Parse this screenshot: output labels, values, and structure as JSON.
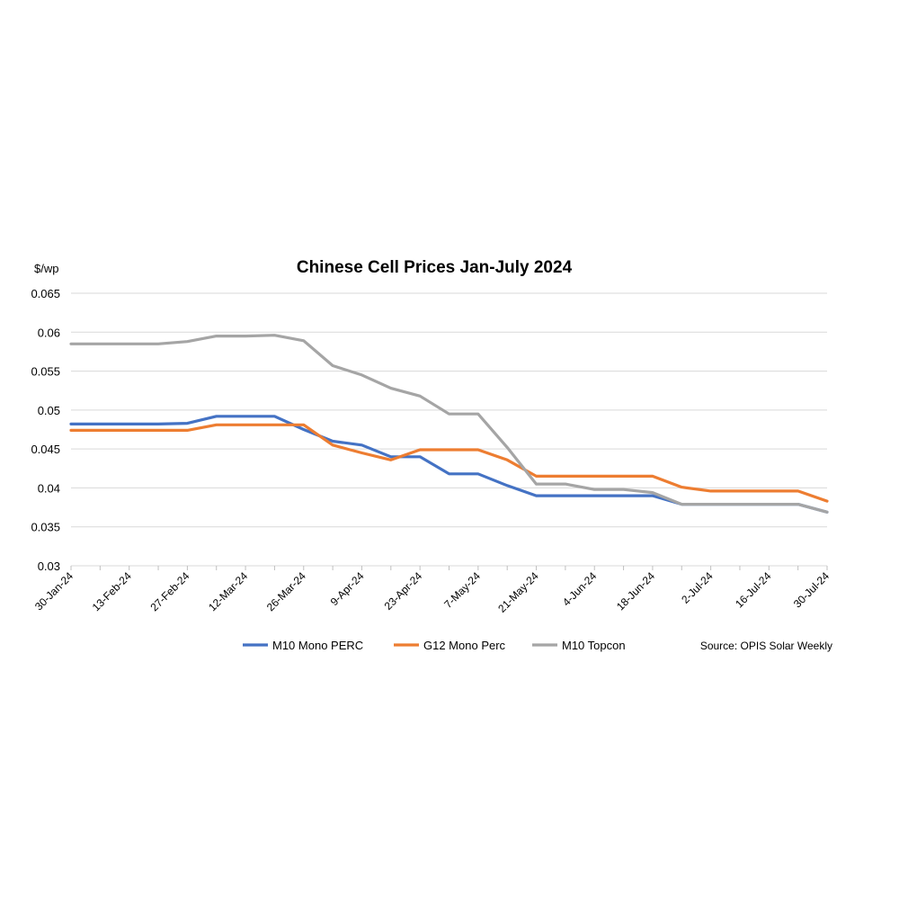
{
  "chart_data": {
    "type": "line",
    "title": "Chinese Cell Prices Jan-July 2024",
    "ylabel": "$/wp",
    "xlabel": "",
    "source": "Source: OPIS Solar Weekly",
    "ylim": [
      0.03,
      0.065
    ],
    "yticks": [
      "0.03",
      "0.035",
      "0.04",
      "0.045",
      "0.05",
      "0.055",
      "0.06",
      "0.065"
    ],
    "grid": true,
    "legend_position": "bottom",
    "categories": [
      "30-Jan-24",
      "6-Feb-24",
      "13-Feb-24",
      "20-Feb-24",
      "27-Feb-24",
      "5-Mar-24",
      "12-Mar-24",
      "19-Mar-24",
      "26-Mar-24",
      "2-Apr-24",
      "9-Apr-24",
      "16-Apr-24",
      "23-Apr-24",
      "30-Apr-24",
      "7-May-24",
      "14-May-24",
      "21-May-24",
      "28-May-24",
      "4-Jun-24",
      "11-Jun-24",
      "18-Jun-24",
      "25-Jun-24",
      "2-Jul-24",
      "9-Jul-24",
      "16-Jul-24",
      "23-Jul-24",
      "30-Jul-24"
    ],
    "tick_labels": [
      "30-Jan-24",
      "",
      "13-Feb-24",
      "",
      "27-Feb-24",
      "",
      "12-Mar-24",
      "",
      "26-Mar-24",
      "",
      "9-Apr-24",
      "",
      "23-Apr-24",
      "",
      "7-May-24",
      "",
      "21-May-24",
      "",
      "4-Jun-24",
      "",
      "18-Jun-24",
      "",
      "2-Jul-24",
      "",
      "16-Jul-24",
      "",
      "30-Jul-24"
    ],
    "series": [
      {
        "name": "M10 Mono PERC",
        "color": "#4472C4",
        "values": [
          0.0482,
          0.0482,
          0.0482,
          0.0482,
          0.0483,
          0.0492,
          0.0492,
          0.0492,
          0.0475,
          0.046,
          0.0455,
          0.044,
          0.044,
          0.0418,
          0.0418,
          0.0403,
          0.039,
          0.039,
          0.039,
          0.039,
          0.039,
          0.0379,
          0.0379,
          0.0379,
          0.0379,
          0.0379,
          0.0369
        ]
      },
      {
        "name": "G12 Mono Perc",
        "color": "#ED7D31",
        "values": [
          0.0474,
          0.0474,
          0.0474,
          0.0474,
          0.0474,
          0.0481,
          0.0481,
          0.0481,
          0.0481,
          0.0455,
          0.0445,
          0.0436,
          0.0449,
          0.0449,
          0.0449,
          0.0436,
          0.0415,
          0.0415,
          0.0415,
          0.0415,
          0.0415,
          0.0401,
          0.0396,
          0.0396,
          0.0396,
          0.0396,
          0.0383
        ]
      },
      {
        "name": "M10 Topcon",
        "color": "#A5A5A5",
        "values": [
          0.0585,
          0.0585,
          0.0585,
          0.0585,
          0.0588,
          0.0595,
          0.0595,
          0.0596,
          0.0589,
          0.0557,
          0.0545,
          0.0528,
          0.0518,
          0.0495,
          0.0495,
          0.0452,
          0.0405,
          0.0405,
          0.0398,
          0.0398,
          0.0394,
          0.0379,
          0.0379,
          0.0379,
          0.0379,
          0.0379,
          0.0369
        ]
      }
    ]
  }
}
